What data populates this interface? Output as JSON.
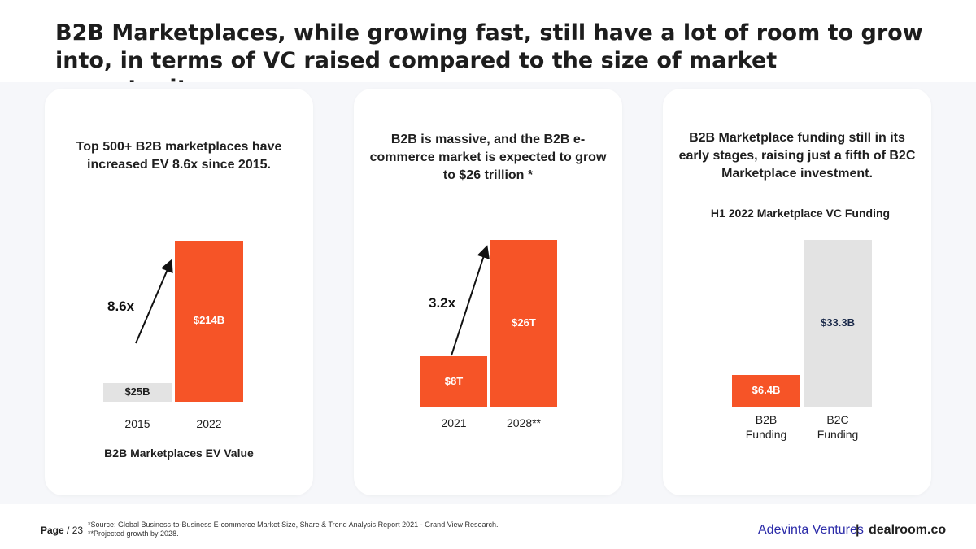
{
  "title": "B2B Marketplaces, while growing fast, still have a lot of room to grow into, in terms of VC raised compared to the size of market opportunity.",
  "colors": {
    "orange": "#f65427",
    "gray": "#e3e3e3",
    "dark_label": "#1b2a4a"
  },
  "cards": [
    {
      "heading": "Top 500+ B2B marketplaces have increased EV 8.6x since 2015.",
      "multiplier": "8.6x",
      "chart_title": "B2B Marketplaces EV Value"
    },
    {
      "heading": "B2B is massive, and the B2B e-commerce market is expected to grow to $26 trillion *",
      "multiplier": "3.2x"
    },
    {
      "heading": "B2B Marketplace funding still in its early stages, raising just a fifth of B2C Marketplace investment.",
      "chart_title": "H1 2022 Marketplace VC Funding"
    }
  ],
  "chart_data": [
    {
      "type": "bar",
      "title": "B2B Marketplaces EV Value",
      "categories": [
        "2015",
        "2022"
      ],
      "values": [
        25,
        214
      ],
      "value_labels": [
        "$25B",
        "$214B"
      ],
      "annotation": "8.6x",
      "units": "B"
    },
    {
      "type": "bar",
      "categories": [
        "2021",
        "2028**"
      ],
      "values": [
        8,
        26
      ],
      "value_labels": [
        "$8T",
        "$26T"
      ],
      "annotation": "3.2x",
      "units": "T"
    },
    {
      "type": "bar",
      "title": "H1 2022 Marketplace VC Funding",
      "categories": [
        "B2B Funding",
        "B2C Funding"
      ],
      "category_lines": [
        [
          "B2B",
          "Funding"
        ],
        [
          "B2C",
          "Funding"
        ]
      ],
      "values": [
        6.4,
        33.3
      ],
      "value_labels": [
        "$6.4B",
        "$33.3B"
      ],
      "units": "B"
    }
  ],
  "footer": {
    "page": "Page",
    "page_number": "23",
    "source_note_1": "*Source: Global Business-to-Business E-commerce Market Size, Share & Trend Analysis Report 2021 - Grand View Research.",
    "source_note_2": "**Projected growth by 2028.",
    "logo_adevinta": "Adevinta Ventures",
    "logo_separator": "|",
    "logo_dealroom": "dealroom.co"
  }
}
